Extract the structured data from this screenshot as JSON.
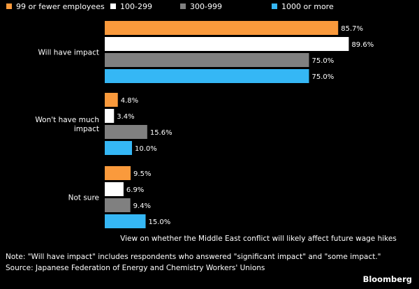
{
  "chart_data": {
    "type": "bar",
    "orientation": "horizontal",
    "categories": [
      "Will have impact",
      "Won't have much impact",
      "Not sure"
    ],
    "series": [
      {
        "name": "99 or fewer employees",
        "values": [
          85.7,
          4.8,
          9.5
        ],
        "color": "#fa9a3c"
      },
      {
        "name": "100-299",
        "values": [
          89.6,
          3.4,
          6.9
        ],
        "color": "#ffffff"
      },
      {
        "name": "300-999",
        "values": [
          75.0,
          15.6,
          9.4
        ],
        "color": "#808080"
      },
      {
        "name": "1000 or more",
        "values": [
          75.0,
          10.0,
          15.0
        ],
        "color": "#35b7f5"
      }
    ],
    "value_suffix": "%",
    "xlim": [
      0,
      100
    ],
    "xlabel": "View on whether the Middle East conflict will likely affect future wage hikes",
    "legend_position": "top-left",
    "grid": false
  },
  "footer": {
    "note": "Note: \"Will have impact\" includes respondents who answered \"significant impact\" and \"some impact.\"",
    "source": "Source: Japanese Federation of Energy and Chemistry Workers' Unions",
    "brand": "Bloomberg"
  }
}
